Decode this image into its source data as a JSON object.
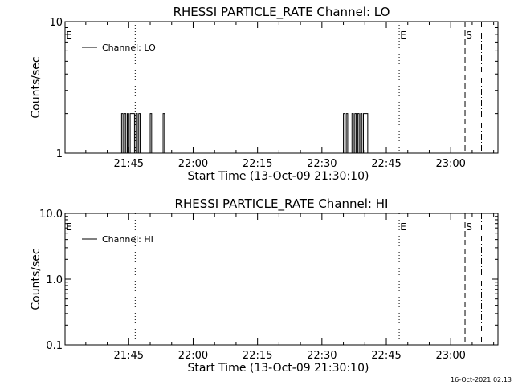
{
  "chart_data": [
    {
      "type": "line",
      "title": "RHESSI PARTICLE_RATE Channel: LO",
      "xlabel": "Start Time (13-Oct-09 21:30:10)",
      "ylabel": "Counts/sec",
      "y_scale": "log",
      "ylim": [
        1,
        10
      ],
      "xlim": [
        "21:30:10",
        "23:11:00"
      ],
      "xticks": [
        "21:45",
        "22:00",
        "22:15",
        "22:30",
        "22:45",
        "23:00"
      ],
      "yticks": [
        "1",
        "10"
      ],
      "grid": false,
      "legend": {
        "position": "top-left",
        "entries": [
          "Channel: LO"
        ]
      },
      "markers": [
        {
          "label": "E",
          "time": "21:30:10",
          "style": "none"
        },
        {
          "label": "",
          "time": "21:46:30",
          "style": "dotted"
        },
        {
          "label": "E",
          "time": "22:48:00",
          "style": "dotted"
        },
        {
          "label": "S",
          "time": "23:03:20",
          "style": "dashed"
        },
        {
          "label": "",
          "time": "23:07:10",
          "style": "dashdot"
        }
      ],
      "series": [
        {
          "values_description": "spiky 1-2 counts/sec bursts",
          "points": [
            [
              "21:43:00",
              1
            ],
            [
              "21:43:20",
              2
            ],
            [
              "21:43:40",
              1
            ],
            [
              "21:44:00",
              2
            ],
            [
              "21:44:20",
              1
            ],
            [
              "21:44:40",
              2
            ],
            [
              "21:45:00",
              1
            ],
            [
              "21:45:20",
              2
            ],
            [
              "21:46:00",
              2
            ],
            [
              "21:46:20",
              1
            ],
            [
              "21:46:40",
              2
            ],
            [
              "21:47:00",
              1
            ],
            [
              "21:47:20",
              2
            ],
            [
              "21:47:40",
              1
            ],
            [
              "21:49:40",
              1
            ],
            [
              "21:50:00",
              2
            ],
            [
              "21:50:20",
              1
            ],
            [
              "21:52:40",
              1
            ],
            [
              "21:53:00",
              2
            ],
            [
              "21:53:20",
              1
            ],
            [
              "22:34:40",
              1
            ],
            [
              "22:35:00",
              2
            ],
            [
              "22:35:20",
              1
            ],
            [
              "22:35:40",
              2
            ],
            [
              "22:36:00",
              1
            ],
            [
              "22:36:40",
              1
            ],
            [
              "22:37:00",
              2
            ],
            [
              "22:37:20",
              1
            ],
            [
              "22:37:40",
              2
            ],
            [
              "22:38:00",
              1
            ],
            [
              "22:38:20",
              2
            ],
            [
              "22:38:40",
              1
            ],
            [
              "22:39:00",
              2
            ],
            [
              "22:39:20",
              1
            ],
            [
              "22:39:40",
              2
            ],
            [
              "22:40:20",
              2
            ],
            [
              "22:40:40",
              1
            ]
          ]
        }
      ]
    },
    {
      "type": "line",
      "title": "RHESSI PARTICLE_RATE Channel: HI",
      "xlabel": "Start Time (13-Oct-09 21:30:10)",
      "ylabel": "Counts/sec",
      "y_scale": "log",
      "ylim": [
        0.1,
        10
      ],
      "xlim": [
        "21:30:10",
        "23:11:00"
      ],
      "xticks": [
        "21:45",
        "22:00",
        "22:15",
        "22:30",
        "22:45",
        "23:00"
      ],
      "yticks": [
        "0.1",
        "1.0",
        "10.0"
      ],
      "grid": false,
      "legend": {
        "position": "top-left",
        "entries": [
          "Channel: HI"
        ]
      },
      "markers": [
        {
          "label": "E",
          "time": "21:30:10",
          "style": "none"
        },
        {
          "label": "",
          "time": "21:46:30",
          "style": "dotted"
        },
        {
          "label": "E",
          "time": "22:48:00",
          "style": "dotted"
        },
        {
          "label": "S",
          "time": "23:03:20",
          "style": "dashed"
        },
        {
          "label": "",
          "time": "23:07:10",
          "style": "dashdot"
        }
      ],
      "series": [
        {
          "points": []
        }
      ]
    }
  ],
  "footer": {
    "timestamp": "16-Oct-2021 02:13"
  }
}
